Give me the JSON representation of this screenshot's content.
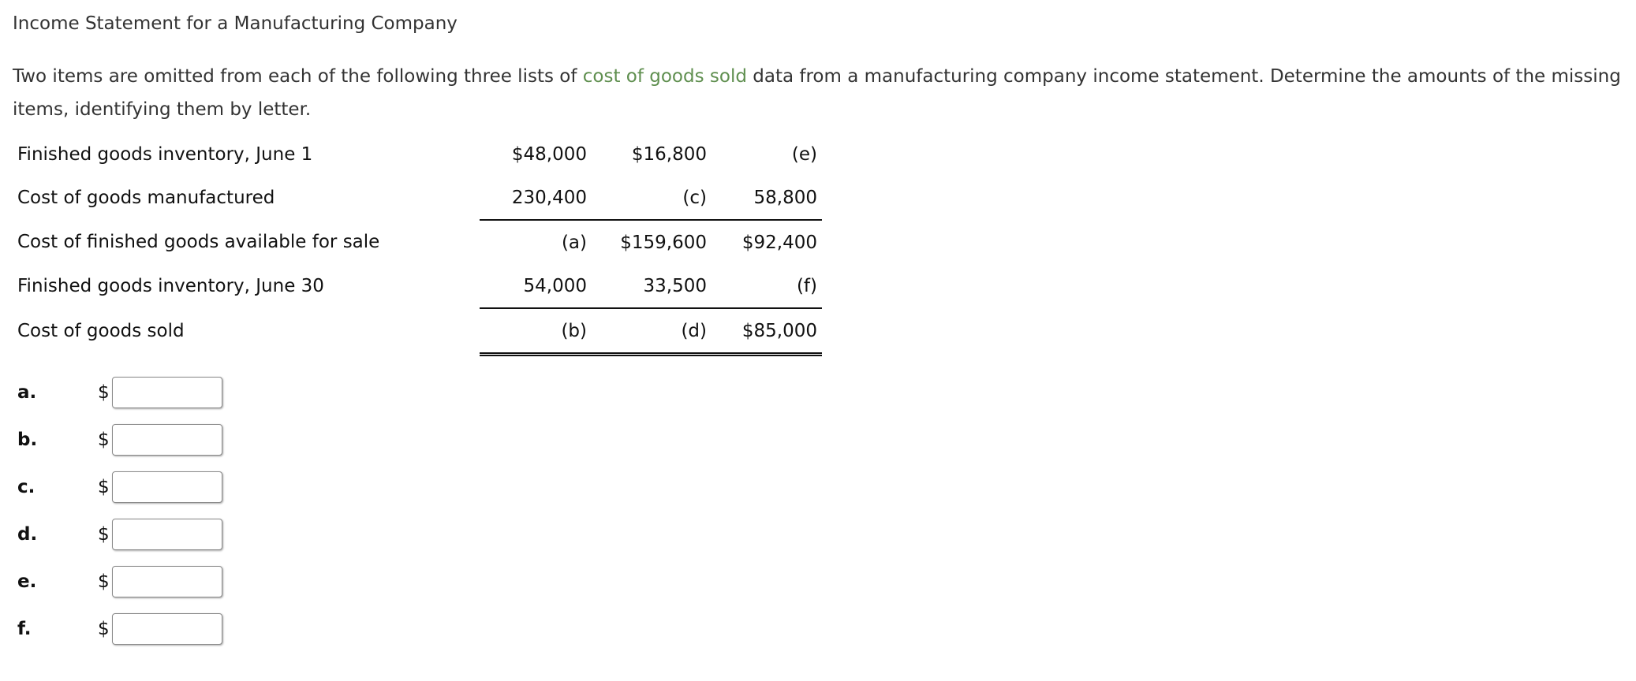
{
  "title": "Income Statement for a Manufacturing Company",
  "intro": {
    "before": "Two items are omitted from each of the following three lists of ",
    "link": "cost of goods sold",
    "after": " data from a manufacturing company income statement. Determine the amounts of the missing items, identifying them by letter."
  },
  "table": {
    "rows": [
      {
        "label": "Finished goods inventory, June 1",
        "values": [
          "$48,000",
          "$16,800",
          "(e)"
        ]
      },
      {
        "label": "Cost of goods manufactured",
        "values": [
          "230,400",
          "(c)",
          "58,800"
        ]
      },
      {
        "label": "Cost of finished goods available for sale",
        "values": [
          "(a)",
          "$159,600",
          "$92,400"
        ]
      },
      {
        "label": "Finished goods inventory, June 30",
        "values": [
          "54,000",
          "33,500",
          "(f)"
        ]
      },
      {
        "label": "Cost of goods sold",
        "values": [
          "(b)",
          "(d)",
          "$85,000"
        ]
      }
    ]
  },
  "answers": {
    "currency_symbol": "$",
    "items": [
      {
        "letter": "a.",
        "value": ""
      },
      {
        "letter": "b.",
        "value": ""
      },
      {
        "letter": "c.",
        "value": ""
      },
      {
        "letter": "d.",
        "value": ""
      },
      {
        "letter": "e.",
        "value": ""
      },
      {
        "letter": "f.",
        "value": ""
      }
    ]
  },
  "colors": {
    "link": "#5f8f4f",
    "text": "#333333"
  }
}
